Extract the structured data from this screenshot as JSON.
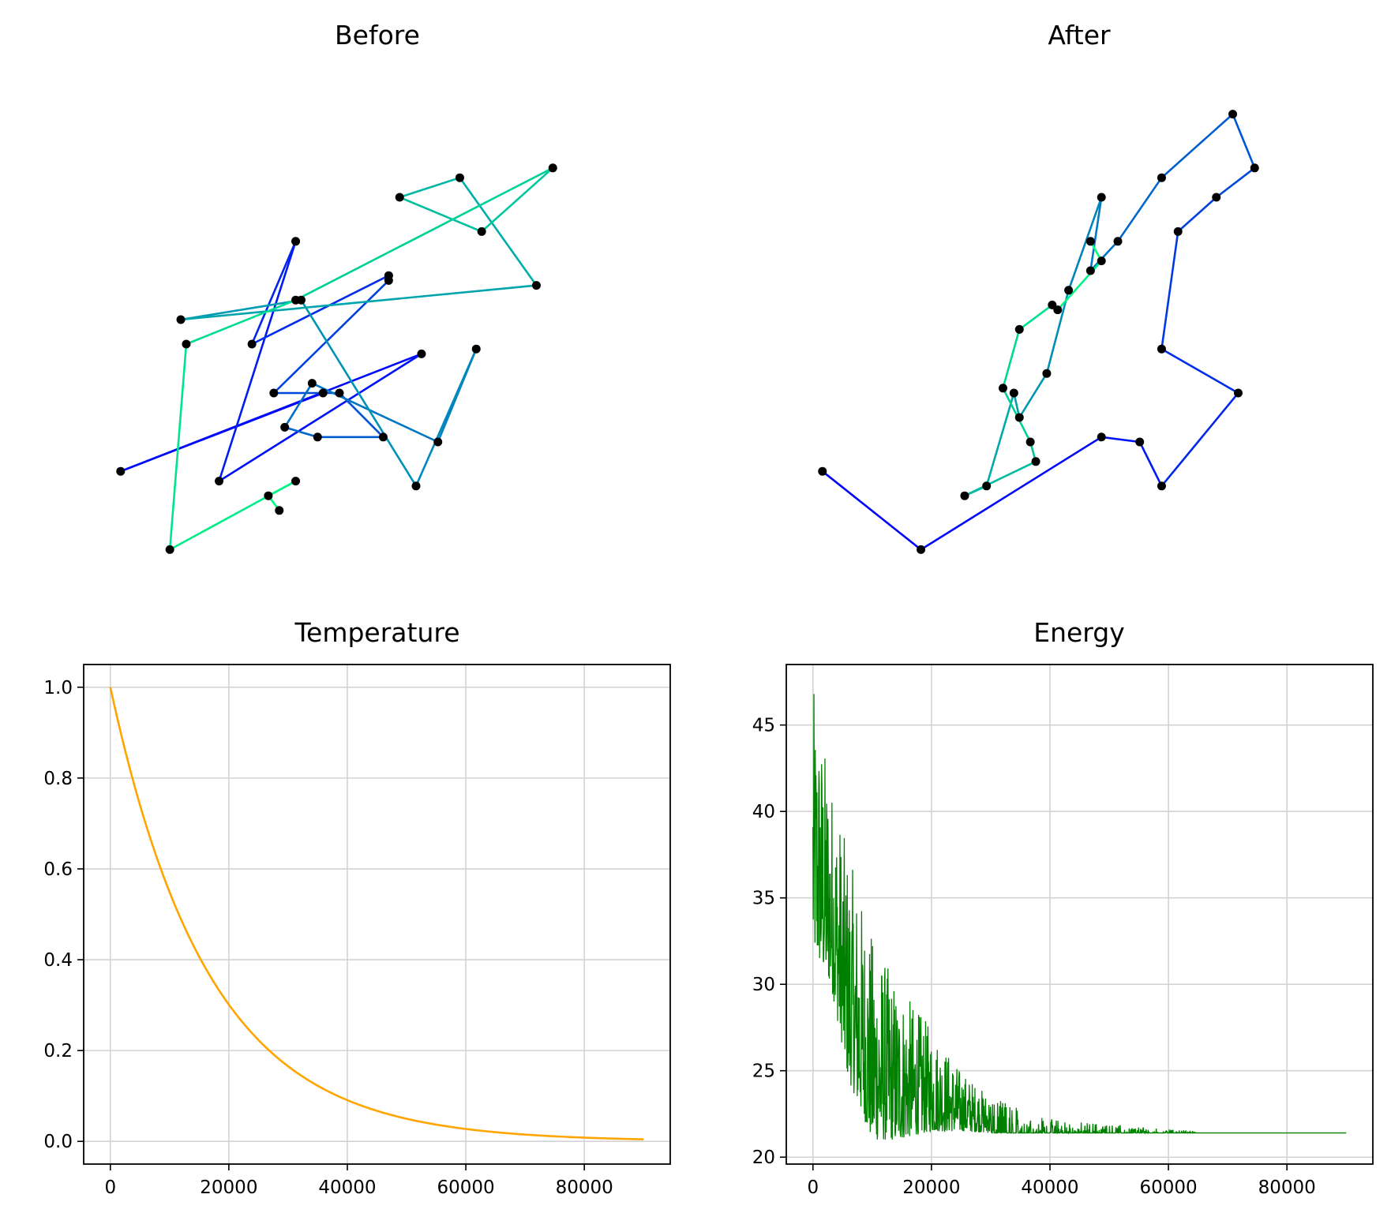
{
  "chart_data": [
    {
      "type": "line",
      "title": "Before",
      "axes_visible": false,
      "marker_color": "#000000",
      "colormap": "winter",
      "points": [
        [
          0.4,
          0.35
        ],
        [
          0.03,
          0.19
        ],
        [
          0.58,
          0.43
        ],
        [
          0.21,
          0.17
        ],
        [
          0.35,
          0.66
        ],
        [
          0.27,
          0.45
        ],
        [
          0.52,
          0.59
        ],
        [
          0.52,
          0.58
        ],
        [
          0.31,
          0.35
        ],
        [
          0.43,
          0.35
        ],
        [
          0.51,
          0.26
        ],
        [
          0.39,
          0.26
        ],
        [
          0.33,
          0.28
        ],
        [
          0.38,
          0.37
        ],
        [
          0.61,
          0.25
        ],
        [
          0.68,
          0.44
        ],
        [
          0.57,
          0.16
        ],
        [
          0.36,
          0.54
        ],
        [
          0.14,
          0.5
        ],
        [
          0.79,
          0.57
        ],
        [
          0.65,
          0.79
        ],
        [
          0.54,
          0.75
        ],
        [
          0.69,
          0.68
        ],
        [
          0.82,
          0.81
        ],
        [
          0.35,
          0.54
        ],
        [
          0.15,
          0.45
        ],
        [
          0.12,
          0.03
        ],
        [
          0.35,
          0.17
        ],
        [
          0.3,
          0.14
        ],
        [
          0.32,
          0.11
        ]
      ]
    },
    {
      "type": "line",
      "title": "After",
      "axes_visible": false,
      "marker_color": "#000000",
      "colormap": "winter",
      "points": [
        [
          0.03,
          0.19
        ],
        [
          0.21,
          0.03
        ],
        [
          0.54,
          0.26
        ],
        [
          0.61,
          0.25
        ],
        [
          0.65,
          0.16
        ],
        [
          0.79,
          0.35
        ],
        [
          0.65,
          0.44
        ],
        [
          0.68,
          0.68
        ],
        [
          0.75,
          0.75
        ],
        [
          0.82,
          0.81
        ],
        [
          0.78,
          0.92
        ],
        [
          0.65,
          0.79
        ],
        [
          0.57,
          0.66
        ],
        [
          0.52,
          0.6
        ],
        [
          0.54,
          0.75
        ],
        [
          0.48,
          0.56
        ],
        [
          0.44,
          0.39
        ],
        [
          0.39,
          0.3
        ],
        [
          0.38,
          0.35
        ],
        [
          0.33,
          0.16
        ],
        [
          0.29,
          0.14
        ],
        [
          0.42,
          0.21
        ],
        [
          0.41,
          0.25
        ],
        [
          0.36,
          0.36
        ],
        [
          0.39,
          0.48
        ],
        [
          0.45,
          0.53
        ],
        [
          0.46,
          0.52
        ],
        [
          0.54,
          0.62
        ],
        [
          0.52,
          0.66
        ]
      ]
    },
    {
      "type": "line",
      "title": "Temperature",
      "line_color": "#ffa500",
      "grid": true,
      "xlim": [
        -4500,
        94500
      ],
      "ylim": [
        -0.05,
        1.05
      ],
      "xticks": [
        0,
        20000,
        40000,
        60000,
        80000
      ],
      "yticks": [
        0.0,
        0.2,
        0.4,
        0.6,
        0.8,
        1.0
      ],
      "ytick_labels": [
        "0.0",
        "0.2",
        "0.4",
        "0.6",
        "0.8",
        "1.0"
      ],
      "x_max": 90000,
      "decay_rate": 6e-05,
      "series": [
        {
          "x_start": 0,
          "x_end": 90000,
          "y_start": 1.0,
          "y_end": 0.005
        }
      ]
    },
    {
      "type": "line",
      "title": "Energy",
      "line_color": "#008000",
      "grid": true,
      "xlim": [
        -4500,
        94500
      ],
      "ylim": [
        19.6,
        48.5
      ],
      "xticks": [
        0,
        20000,
        40000,
        60000,
        80000
      ],
      "yticks": [
        20,
        25,
        30,
        35,
        40,
        45
      ],
      "ytick_labels": [
        "20",
        "25",
        "30",
        "35",
        "40",
        "45"
      ],
      "final_value": 21.4,
      "x_max": 90000,
      "envelope": [
        {
          "x": 0,
          "min": 32.0,
          "max": 47.2
        },
        {
          "x": 3000,
          "min": 30.0,
          "max": 42.0
        },
        {
          "x": 6000,
          "min": 24.5,
          "max": 37.5
        },
        {
          "x": 10000,
          "min": 21.0,
          "max": 32.8
        },
        {
          "x": 14000,
          "min": 21.0,
          "max": 30.2
        },
        {
          "x": 20000,
          "min": 21.5,
          "max": 27.5
        },
        {
          "x": 25000,
          "min": 21.5,
          "max": 25.0
        },
        {
          "x": 30000,
          "min": 21.4,
          "max": 23.5
        },
        {
          "x": 40000,
          "min": 21.4,
          "max": 22.2
        },
        {
          "x": 50000,
          "min": 21.4,
          "max": 21.9
        },
        {
          "x": 60000,
          "min": 21.4,
          "max": 21.6
        },
        {
          "x": 70000,
          "min": 21.4,
          "max": 21.45
        },
        {
          "x": 90000,
          "min": 21.4,
          "max": 21.4
        }
      ]
    }
  ]
}
